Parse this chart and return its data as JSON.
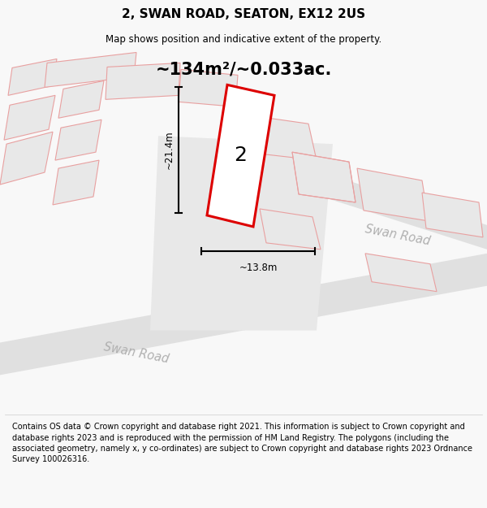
{
  "title": "2, SWAN ROAD, SEATON, EX12 2US",
  "subtitle": "Map shows position and indicative extent of the property.",
  "area_label": "~134m²/~0.033ac.",
  "property_number": "2",
  "dim_vertical": "~21.4m",
  "dim_horizontal": "~13.8m",
  "road_label1": "Swan Road",
  "road_label2": "Swan Road",
  "copyright_text": "Contains OS data © Crown copyright and database right 2021. This information is subject to Crown copyright and database rights 2023 and is reproduced with the permission of HM Land Registry. The polygons (including the associated geometry, namely x, y co-ordinates) are subject to Crown copyright and database rights 2023 Ordnance Survey 100026316.",
  "bg_color": "#f8f8f8",
  "map_bg": "#ffffff",
  "road_fill": "#e0e0e0",
  "building_fill": "#e8e8e8",
  "red_color": "#dd0000",
  "pink_color": "#e8a0a0",
  "dark_color": "#333333",
  "gray_road": "#c8c8c8",
  "gray_text": "#b0b0b0"
}
